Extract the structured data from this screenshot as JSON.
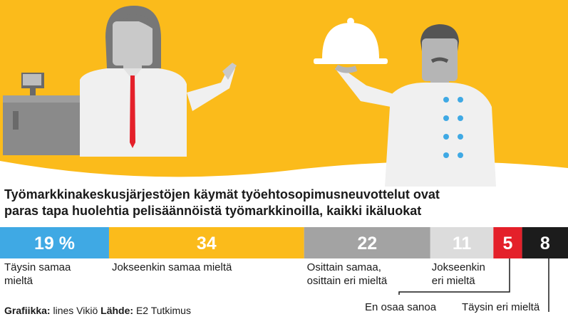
{
  "chart_data": {
    "type": "bar",
    "orientation": "stacked-horizontal",
    "title": "Työmarkkinakeskusjärjestöjen käymät työehtosopimusneuvottelut ovat paras tapa huolehtia pelisäännöistä työmarkkinoilla, kaikki ikäluokat",
    "title_lines": [
      "Työmarkkinakeskusjärjestöjen käymät työehtosopimusneuvottelut ovat",
      "paras tapa huolehtia pelisäännöistä työmarkkinoilla, kaikki ikäluokat"
    ],
    "categories": [
      "Täysin samaa mieltä",
      "Jokseenkin samaa mieltä",
      "Osittain samaa, osittain eri mieltä",
      "Jokseenkin eri mieltä",
      "En osaa sanoa",
      "Täysin eri mieltä"
    ],
    "values": [
      19,
      34,
      22,
      11,
      5,
      8
    ],
    "value_labels": [
      "19 %",
      "34",
      "22",
      "11",
      "5",
      "8"
    ],
    "colors": [
      "#3fa9e4",
      "#fbbb1b",
      "#a3a3a3",
      "#dcdcdc",
      "#e4202a",
      "#1c1c1c"
    ],
    "label_colors": [
      "#ffffff",
      "#ffffff",
      "#ffffff",
      "#ffffff",
      "#ffffff",
      "#ffffff"
    ],
    "legend_lines": [
      [
        "Täysin samaa",
        "mieltä"
      ],
      [
        "Jokseenkin samaa mieltä"
      ],
      [
        "Osittain samaa,",
        "osittain eri mieltä"
      ],
      [
        "Jokseenkin",
        "eri mieltä"
      ],
      [
        "En osaa sanoa"
      ],
      [
        "Täysin eri mieltä"
      ]
    ],
    "unit": "%"
  },
  "credits": {
    "graphics_label": "Grafiikka:",
    "graphics_value": "lines Vikiö",
    "source_label": "Lähde:",
    "source_value": "E2 Tutkimus"
  },
  "illustration": {
    "background_color": "#fbbb1b",
    "icons": [
      "cash-register-icon",
      "cashier-woman-icon",
      "waiter-chef-icon",
      "serving-cloche-icon"
    ]
  }
}
